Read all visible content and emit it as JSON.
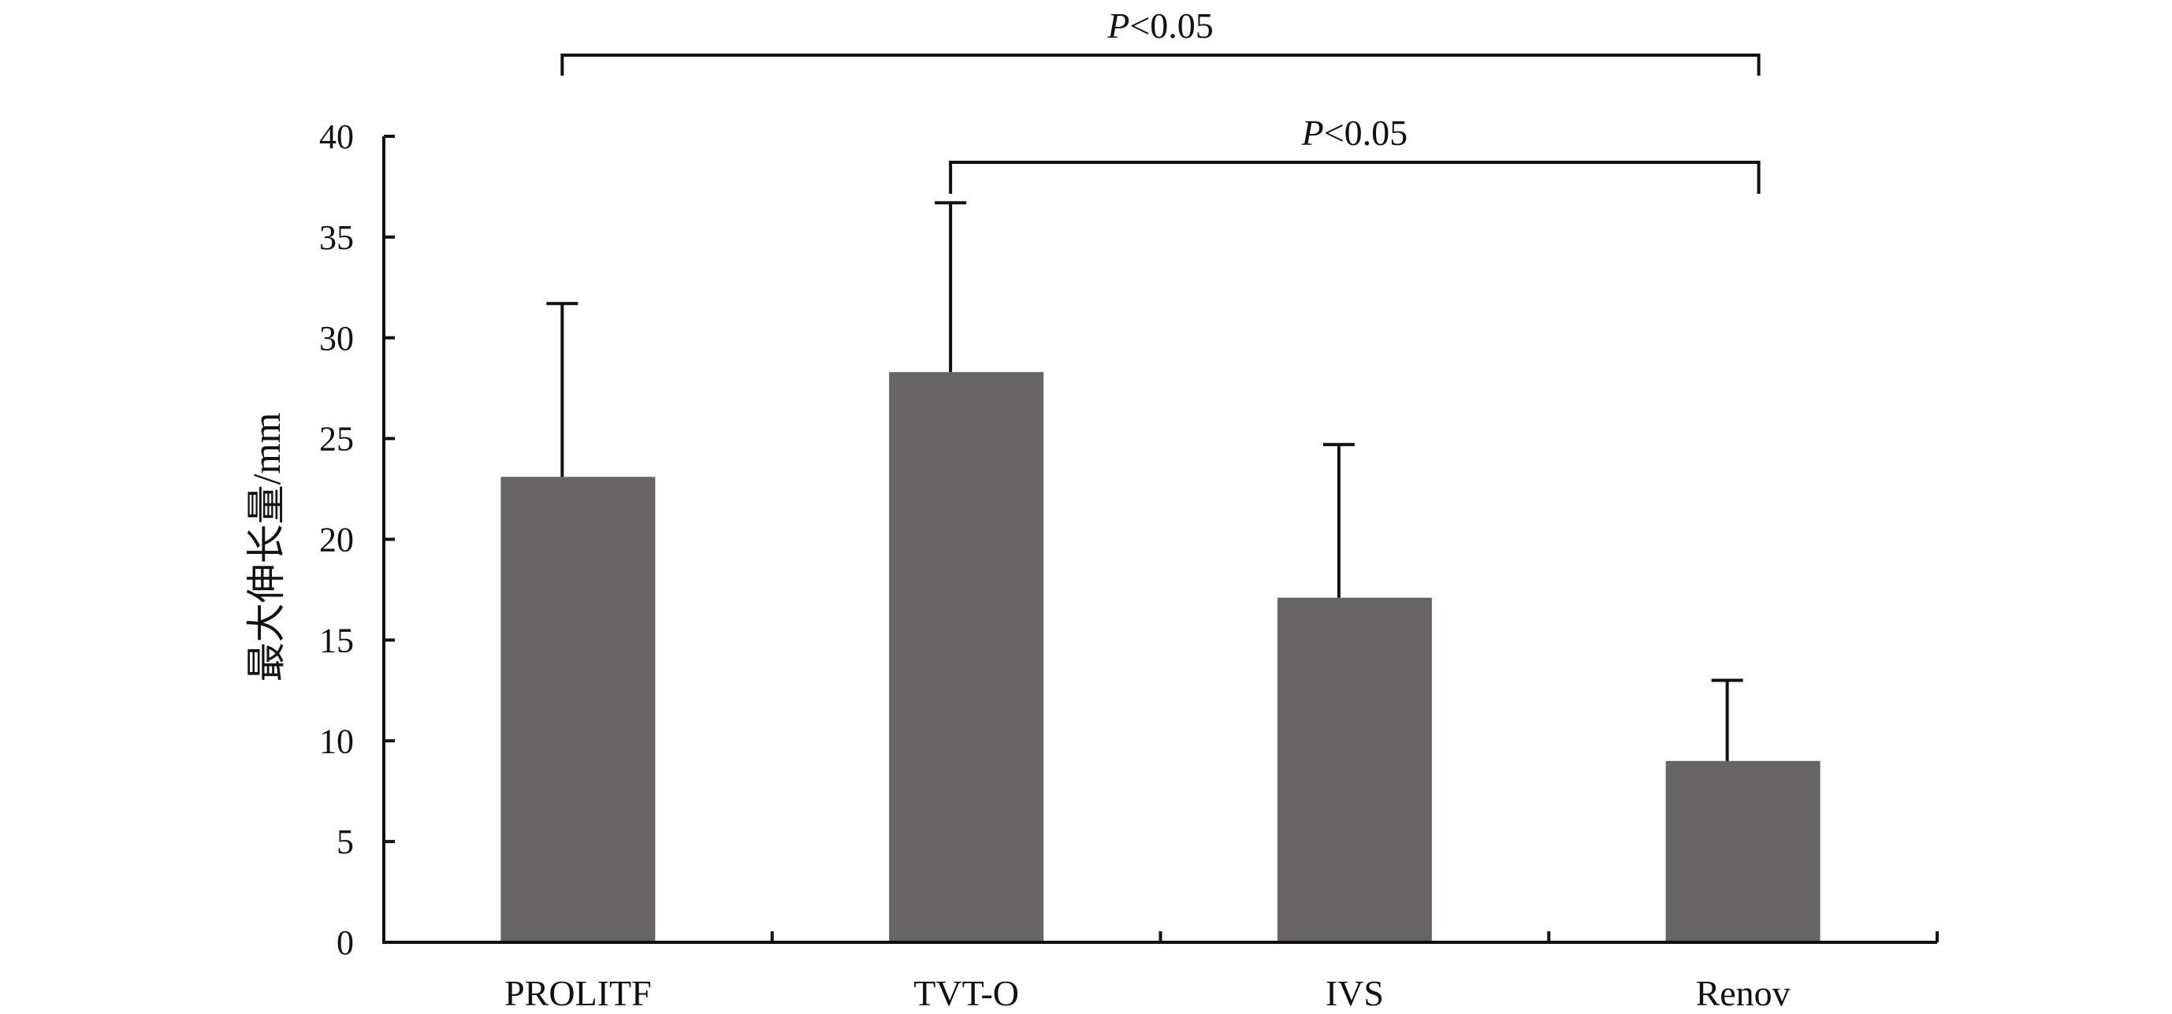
{
  "chart_data": {
    "type": "bar",
    "categories": [
      "PROLITF",
      "TVT-O",
      "IVS",
      "Renov"
    ],
    "values": [
      23.1,
      28.3,
      17.1,
      9.0
    ],
    "error_upper": [
      31.7,
      36.7,
      24.7,
      13.0
    ],
    "ylabel": "最大伸长量/mm",
    "xlabel": "",
    "ylim": [
      0,
      40
    ],
    "yticks": [
      0,
      5,
      10,
      15,
      20,
      25,
      30,
      35,
      40
    ],
    "grid": false,
    "bar_color": "#666465",
    "significance": [
      {
        "from": "PROLITF",
        "to": "Renov",
        "p_symbol": "P",
        "p_rest": "<0.05",
        "level": 1
      },
      {
        "from": "TVT-O",
        "to": "Renov",
        "p_symbol": "P",
        "p_rest": "<0.05",
        "level": 2
      }
    ]
  }
}
